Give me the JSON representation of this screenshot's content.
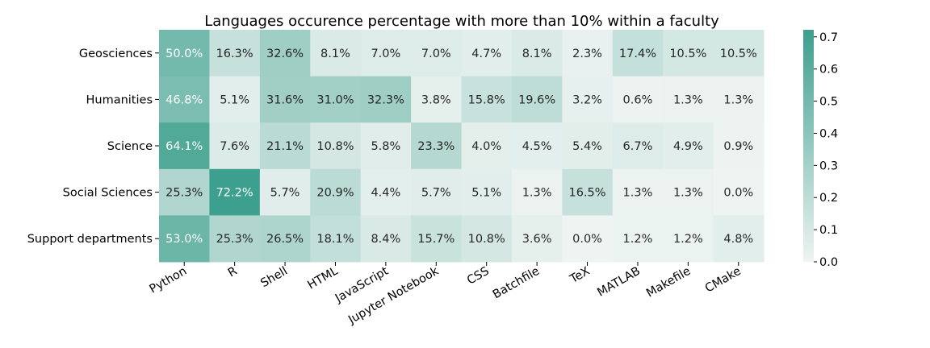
{
  "chart_data": {
    "type": "heatmap",
    "title": "Languages occurence percentage with more than 10% within a faculty",
    "xlabel": "",
    "ylabel": "",
    "rows": [
      "Geosciences",
      "Humanities",
      "Science",
      "Social Sciences",
      "Support departments"
    ],
    "columns": [
      "Python",
      "R",
      "Shell",
      "HTML",
      "JavaScript",
      "Jupyter Notebook",
      "CSS",
      "Batchfile",
      "TeX",
      "MATLAB",
      "Makefile",
      "CMake"
    ],
    "values": [
      [
        0.5,
        0.163,
        0.326,
        0.081,
        0.07,
        0.07,
        0.047,
        0.081,
        0.023,
        0.174,
        0.105,
        0.105
      ],
      [
        0.468,
        0.051,
        0.316,
        0.31,
        0.323,
        0.038,
        0.158,
        0.196,
        0.032,
        0.006,
        0.013,
        0.013
      ],
      [
        0.641,
        0.076,
        0.211,
        0.108,
        0.058,
        0.233,
        0.04,
        0.045,
        0.054,
        0.067,
        0.049,
        0.009
      ],
      [
        0.253,
        0.722,
        0.057,
        0.209,
        0.044,
        0.057,
        0.051,
        0.013,
        0.165,
        0.013,
        0.013,
        0.0
      ],
      [
        0.53,
        0.253,
        0.265,
        0.181,
        0.084,
        0.157,
        0.108,
        0.036,
        0.0,
        0.012,
        0.012,
        0.048
      ]
    ],
    "annotations": [
      [
        "50.0%",
        "16.3%",
        "32.6%",
        "8.1%",
        "7.0%",
        "7.0%",
        "4.7%",
        "8.1%",
        "2.3%",
        "17.4%",
        "10.5%",
        "10.5%"
      ],
      [
        "46.8%",
        "5.1%",
        "31.6%",
        "31.0%",
        "32.3%",
        "3.8%",
        "15.8%",
        "19.6%",
        "3.2%",
        "0.6%",
        "1.3%",
        "1.3%"
      ],
      [
        "64.1%",
        "7.6%",
        "21.1%",
        "10.8%",
        "5.8%",
        "23.3%",
        "4.0%",
        "4.5%",
        "5.4%",
        "6.7%",
        "4.9%",
        "0.9%"
      ],
      [
        "25.3%",
        "72.2%",
        "5.7%",
        "20.9%",
        "4.4%",
        "5.7%",
        "5.1%",
        "1.3%",
        "16.5%",
        "1.3%",
        "1.3%",
        "0.0%"
      ],
      [
        "53.0%",
        "25.3%",
        "26.5%",
        "18.1%",
        "8.4%",
        "15.7%",
        "10.8%",
        "3.6%",
        "0.0%",
        "1.2%",
        "1.2%",
        "4.8%"
      ]
    ],
    "colorbar": {
      "vmin": 0.0,
      "vmax": 0.722,
      "ticks": [
        "0.0",
        "0.1",
        "0.2",
        "0.3",
        "0.4",
        "0.5",
        "0.6",
        "0.7"
      ],
      "color_low": "#eef4f2",
      "color_high": "#3d9f8d"
    },
    "legend": "colorbar-right",
    "grid": false
  }
}
